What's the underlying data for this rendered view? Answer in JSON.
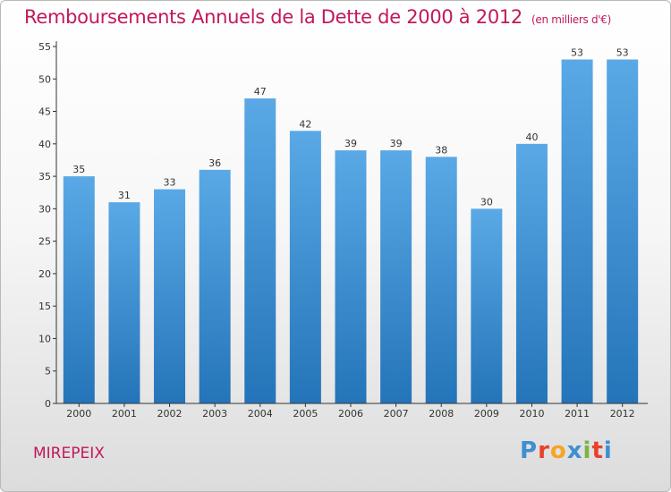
{
  "title": "Remboursements Annuels de la Dette de 2000 à 2012",
  "unit_note": "(en milliers d'€)",
  "city": "MIREPEIX",
  "logo": {
    "letters": [
      "P",
      "r",
      "o",
      "x",
      "i",
      "t",
      "i"
    ],
    "colors": [
      "#3f8fd0",
      "#e8412d",
      "#f5a623",
      "#3f8fd0",
      "#7cb342",
      "#e8412d",
      "#3f8fd0"
    ]
  },
  "colors": {
    "title": "#c2185b",
    "bar_top": "#5aa9e6",
    "bar_bottom": "#2474b9",
    "axis": "#333333"
  },
  "chart_data": {
    "type": "bar",
    "categories": [
      "2000",
      "2001",
      "2002",
      "2003",
      "2004",
      "2005",
      "2006",
      "2007",
      "2008",
      "2009",
      "2010",
      "2011",
      "2012"
    ],
    "values": [
      35,
      31,
      33,
      36,
      47,
      42,
      39,
      39,
      38,
      30,
      40,
      53,
      53
    ],
    "ylim": [
      0,
      55
    ],
    "yticks": [
      0,
      5,
      10,
      15,
      20,
      25,
      30,
      35,
      40,
      45,
      50,
      55
    ],
    "grid": false
  }
}
